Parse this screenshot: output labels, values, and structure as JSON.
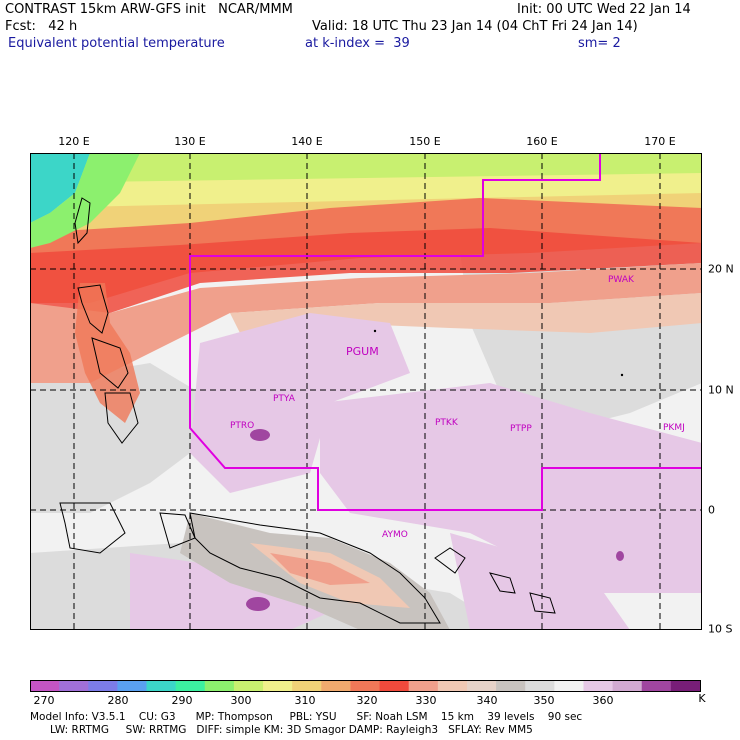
{
  "header": {
    "line1_left": "CONTRAST 15km ARW-GFS init   NCAR/MMM",
    "line1_right": "Init: 00 UTC Wed 22 Jan 14",
    "line2_left": "Fcst:   42 h",
    "line2_right": "Valid: 18 UTC Thu 23 Jan 14 (04 ChT Fri 24 Jan 14)",
    "field_name": "Equivalent potential temperature",
    "k_index": "at k-index =  39",
    "smoothing": "sm= 2"
  },
  "map": {
    "lon_labels": [
      "120 E",
      "130 E",
      "140 E",
      "150 E",
      "160 E",
      "170 E"
    ],
    "lat_labels": [
      "20 N",
      "10 N",
      "0",
      "10 S"
    ],
    "stations": [
      "PWAK",
      "PGUM",
      "PTYA",
      "PTRO",
      "PTKK",
      "PTPP",
      "PKMJ",
      "AYMO"
    ]
  },
  "colorbar": {
    "unit": "K",
    "tick_labels": [
      "270",
      "280",
      "290",
      "300",
      "310",
      "320",
      "330",
      "340",
      "350",
      "360"
    ],
    "colors": [
      "#c455c4",
      "#a070d8",
      "#7c7ce8",
      "#5aa0f0",
      "#3cd6c8",
      "#3cf0a0",
      "#8cf06e",
      "#c8f070",
      "#f0f08c",
      "#f0d278",
      "#f0aa6e",
      "#f07858",
      "#f04a3c",
      "#f0a08c",
      "#f0c8b4",
      "#e6d2c8",
      "#c8c3bf",
      "#dcdcdc",
      "#f2f2f2",
      "#e6c8e6",
      "#d2aad2",
      "#a046a0",
      "#781e78"
    ]
  },
  "model_info": {
    "line1": "Model Info: V3.5.1    CU: G3      MP: Thompson     PBL: YSU      SF: Noah LSM    15 km    39 levels    90 sec",
    "line2": "      LW: RRTMG     SW: RRTMG   DIFF: simple KM: 3D Smagor DAMP: Rayleigh3   SFLAY: Rev MM5"
  }
}
